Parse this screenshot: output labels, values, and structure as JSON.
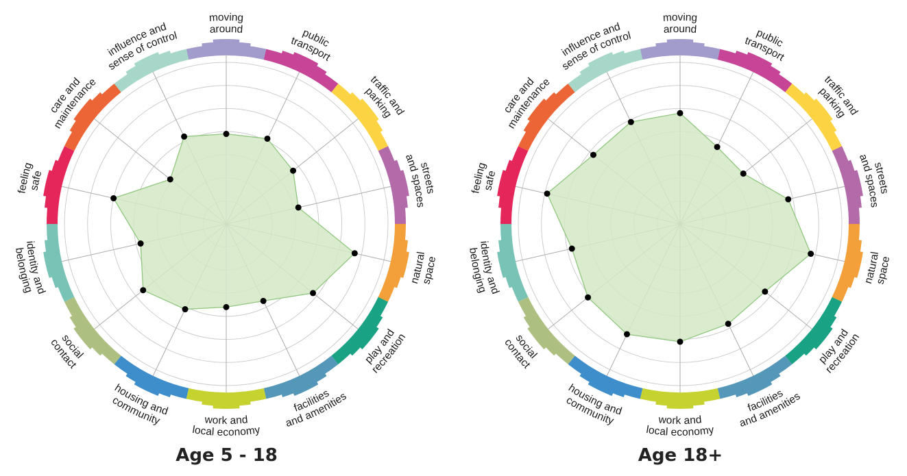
{
  "chart_data": [
    {
      "type": "radar",
      "title": "Age 5 - 18",
      "rlim": [
        0,
        7
      ],
      "grid": true,
      "categories": [
        "moving around",
        "public transport",
        "traffic and parking",
        "streets and spaces",
        "natural space",
        "play and recreation",
        "facilities and amenities",
        "work and local economy",
        "housing and community",
        "social contact",
        "identity and belonging",
        "feeling safe",
        "care and maintenance",
        "influence and sense of control"
      ],
      "values": [
        3.9,
        4.1,
        3.7,
        3.2,
        5.7,
        4.8,
        3.7,
        3.6,
        4.1,
        4.6,
        3.8,
        5.0,
        3.1,
        4.2
      ]
    },
    {
      "type": "radar",
      "title": "Age 18+",
      "rlim": [
        0,
        7
      ],
      "grid": true,
      "categories": [
        "moving around",
        "public transport",
        "traffic and parking",
        "streets and spaces",
        "natural space",
        "play and recreation",
        "facilities and amenities",
        "work and local economy",
        "housing and community",
        "social contact",
        "identity and belonging",
        "feeling safe",
        "care and maintenance",
        "influence and sense of control"
      ],
      "values": [
        4.8,
        3.7,
        3.5,
        4.8,
        5.8,
        4.7,
        4.8,
        5.1,
        5.3,
        5.1,
        4.8,
        5.9,
        4.8,
        4.9
      ]
    }
  ],
  "colors": {
    "fill": "#d5e7c6",
    "outline": "#8fc77e",
    "grid": "#cccccc",
    "point": "#000000",
    "segments": [
      "#a29ccc",
      "#c64597",
      "#fcd342",
      "#b36aa9",
      "#f3a03a",
      "#19a284",
      "#5497b8",
      "#c5d22f",
      "#3f8ecc",
      "#aebf82",
      "#79c3b6",
      "#e5265a",
      "#ec6536",
      "#a7d7c9"
    ]
  },
  "segment_labels": [
    [
      "moving",
      "around"
    ],
    [
      "public",
      "transport"
    ],
    [
      "traffic and",
      "parking"
    ],
    [
      "streets",
      "and spaces"
    ],
    [
      "natural",
      "space"
    ],
    [
      "play and",
      "recreation"
    ],
    [
      "facilities",
      "and amenities"
    ],
    [
      "work and",
      "local economy"
    ],
    [
      "housing and",
      "community"
    ],
    [
      "social",
      "contact"
    ],
    [
      "identity and",
      "belonging"
    ],
    [
      "feeling",
      "safe"
    ],
    [
      "care and",
      "maintenance"
    ],
    [
      "influence and",
      "sense of control"
    ]
  ]
}
